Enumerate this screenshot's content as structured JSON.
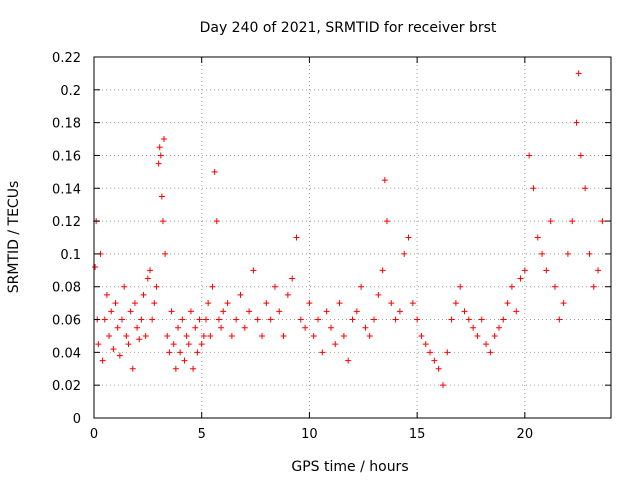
{
  "chart_data": {
    "type": "scatter",
    "title": "Day 240 of 2021, SRMTID for receiver brst",
    "xlabel": "GPS time / hours",
    "ylabel": "SRMTID / TECUs",
    "xlim": [
      0,
      24
    ],
    "ylim": [
      0,
      0.22
    ],
    "xticks": [
      0,
      5,
      10,
      15,
      20
    ],
    "yticks": [
      0,
      0.02,
      0.04,
      0.06,
      0.08,
      0.1,
      0.12,
      0.14,
      0.16,
      0.18,
      0.2,
      0.22
    ],
    "xtick_labels": [
      "0",
      "5",
      "10",
      "15",
      "20"
    ],
    "ytick_labels": [
      "0",
      "0.02",
      "0.04",
      "0.06",
      "0.08",
      "0.1",
      "0.12",
      "0.14",
      "0.16",
      "0.18",
      "0.2",
      "0.22"
    ],
    "grid": true,
    "legend": "none",
    "marker": "plus",
    "color": "#ff0000",
    "series": [
      {
        "x": [
          0.05,
          0.1,
          0.15,
          0.2,
          0.3,
          0.4,
          0.5,
          0.6,
          0.7,
          0.8,
          0.9,
          1.0,
          1.1,
          1.2,
          1.3,
          1.4,
          1.5,
          1.6,
          1.7,
          1.8,
          1.9,
          2.0,
          2.1,
          2.2,
          2.3,
          2.4,
          2.5,
          2.6,
          2.7,
          2.8,
          2.9,
          3.0,
          3.05,
          3.1,
          3.15,
          3.2,
          3.25,
          3.3,
          3.4,
          3.5,
          3.6,
          3.7,
          3.8,
          3.9,
          4.0,
          4.1,
          4.2,
          4.3,
          4.4,
          4.5,
          4.6,
          4.7,
          4.8,
          4.9,
          5.0,
          5.1,
          5.2,
          5.3,
          5.4,
          5.5,
          5.6,
          5.7,
          5.8,
          5.9,
          6.0,
          6.2,
          6.4,
          6.6,
          6.8,
          7.0,
          7.2,
          7.4,
          7.6,
          7.8,
          8.0,
          8.2,
          8.4,
          8.6,
          8.8,
          9.0,
          9.2,
          9.4,
          9.6,
          9.8,
          10.0,
          10.2,
          10.4,
          10.6,
          10.8,
          11.0,
          11.2,
          11.4,
          11.6,
          11.8,
          12.0,
          12.2,
          12.4,
          12.6,
          12.8,
          13.0,
          13.2,
          13.4,
          13.5,
          13.6,
          13.8,
          14.0,
          14.2,
          14.4,
          14.6,
          14.8,
          15.0,
          15.2,
          15.4,
          15.6,
          15.8,
          16.0,
          16.2,
          16.4,
          16.6,
          16.8,
          17.0,
          17.2,
          17.4,
          17.6,
          17.8,
          18.0,
          18.2,
          18.4,
          18.6,
          18.8,
          19.0,
          19.2,
          19.4,
          19.6,
          19.8,
          20.0,
          20.2,
          20.4,
          20.6,
          20.8,
          21.0,
          21.2,
          21.4,
          21.6,
          21.8,
          22.0,
          22.2,
          22.4,
          22.5,
          22.6,
          22.8,
          23.0,
          23.2,
          23.4,
          23.6
        ],
        "y": [
          0.092,
          0.12,
          0.06,
          0.045,
          0.1,
          0.035,
          0.06,
          0.075,
          0.05,
          0.065,
          0.042,
          0.07,
          0.055,
          0.038,
          0.06,
          0.08,
          0.05,
          0.045,
          0.065,
          0.03,
          0.07,
          0.055,
          0.048,
          0.06,
          0.075,
          0.05,
          0.085,
          0.09,
          0.06,
          0.07,
          0.08,
          0.155,
          0.165,
          0.16,
          0.135,
          0.12,
          0.17,
          0.1,
          0.05,
          0.04,
          0.065,
          0.045,
          0.03,
          0.055,
          0.04,
          0.06,
          0.035,
          0.05,
          0.045,
          0.065,
          0.03,
          0.055,
          0.04,
          0.06,
          0.045,
          0.05,
          0.06,
          0.07,
          0.05,
          0.08,
          0.15,
          0.12,
          0.06,
          0.055,
          0.065,
          0.07,
          0.05,
          0.06,
          0.075,
          0.055,
          0.065,
          0.09,
          0.06,
          0.05,
          0.07,
          0.06,
          0.08,
          0.065,
          0.05,
          0.075,
          0.085,
          0.11,
          0.06,
          0.055,
          0.07,
          0.05,
          0.06,
          0.04,
          0.065,
          0.055,
          0.045,
          0.07,
          0.05,
          0.035,
          0.06,
          0.065,
          0.08,
          0.055,
          0.05,
          0.06,
          0.075,
          0.09,
          0.145,
          0.12,
          0.07,
          0.06,
          0.065,
          0.1,
          0.11,
          0.07,
          0.06,
          0.05,
          0.045,
          0.04,
          0.035,
          0.03,
          0.02,
          0.04,
          0.06,
          0.07,
          0.08,
          0.065,
          0.06,
          0.055,
          0.05,
          0.06,
          0.045,
          0.04,
          0.05,
          0.055,
          0.06,
          0.07,
          0.08,
          0.065,
          0.085,
          0.09,
          0.16,
          0.14,
          0.11,
          0.1,
          0.09,
          0.12,
          0.08,
          0.06,
          0.07,
          0.1,
          0.12,
          0.18,
          0.21,
          0.16,
          0.14,
          0.1,
          0.08,
          0.09,
          0.12
        ]
      }
    ]
  }
}
